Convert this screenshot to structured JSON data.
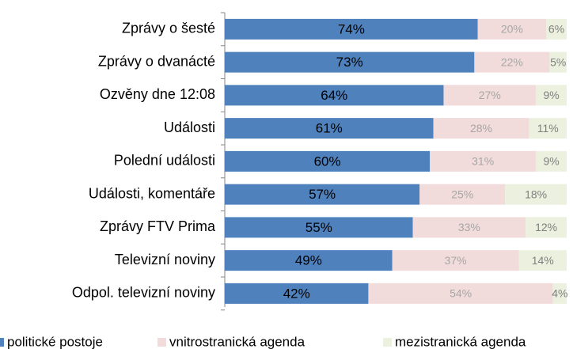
{
  "chart_data": {
    "type": "stacked-bar-horizontal",
    "categories": [
      "Zprávy o šesté",
      "Zprávy o dvanácté",
      "Ozvěny dne 12:08",
      "Události",
      "Polední události",
      "Události, komentáře",
      "Zprávy FTV Prima",
      "Televizní noviny",
      "Odpol. televizní noviny"
    ],
    "xlim": [
      0,
      100
    ],
    "series": [
      {
        "name": "politické postoje",
        "color": "#4f81bd",
        "label_color": "#000000",
        "values": [
          74,
          73,
          64,
          61,
          60,
          57,
          55,
          49,
          42
        ],
        "value_labels": [
          "74%",
          "73%",
          "64%",
          "61%",
          "60%",
          "57%",
          "55%",
          "49%",
          "42%"
        ]
      },
      {
        "name": "vnitrostranická agenda",
        "color": "#f2dcdb",
        "label_color": "#a6a6a6",
        "values": [
          20,
          22,
          27,
          28,
          31,
          25,
          33,
          37,
          54
        ],
        "value_labels": [
          "20%",
          "22%",
          "27%",
          "28%",
          "31%",
          "25%",
          "33%",
          "37%",
          "54%"
        ]
      },
      {
        "name": "mezistranická agenda",
        "color": "#ebf1de",
        "label_color": "#7f7f7f",
        "values": [
          6,
          5,
          9,
          11,
          9,
          18,
          12,
          14,
          4
        ],
        "value_labels": [
          "6%",
          "5%",
          "9%",
          "11%",
          "9%",
          "18%",
          "12%",
          "14%",
          "4%"
        ]
      }
    ]
  }
}
